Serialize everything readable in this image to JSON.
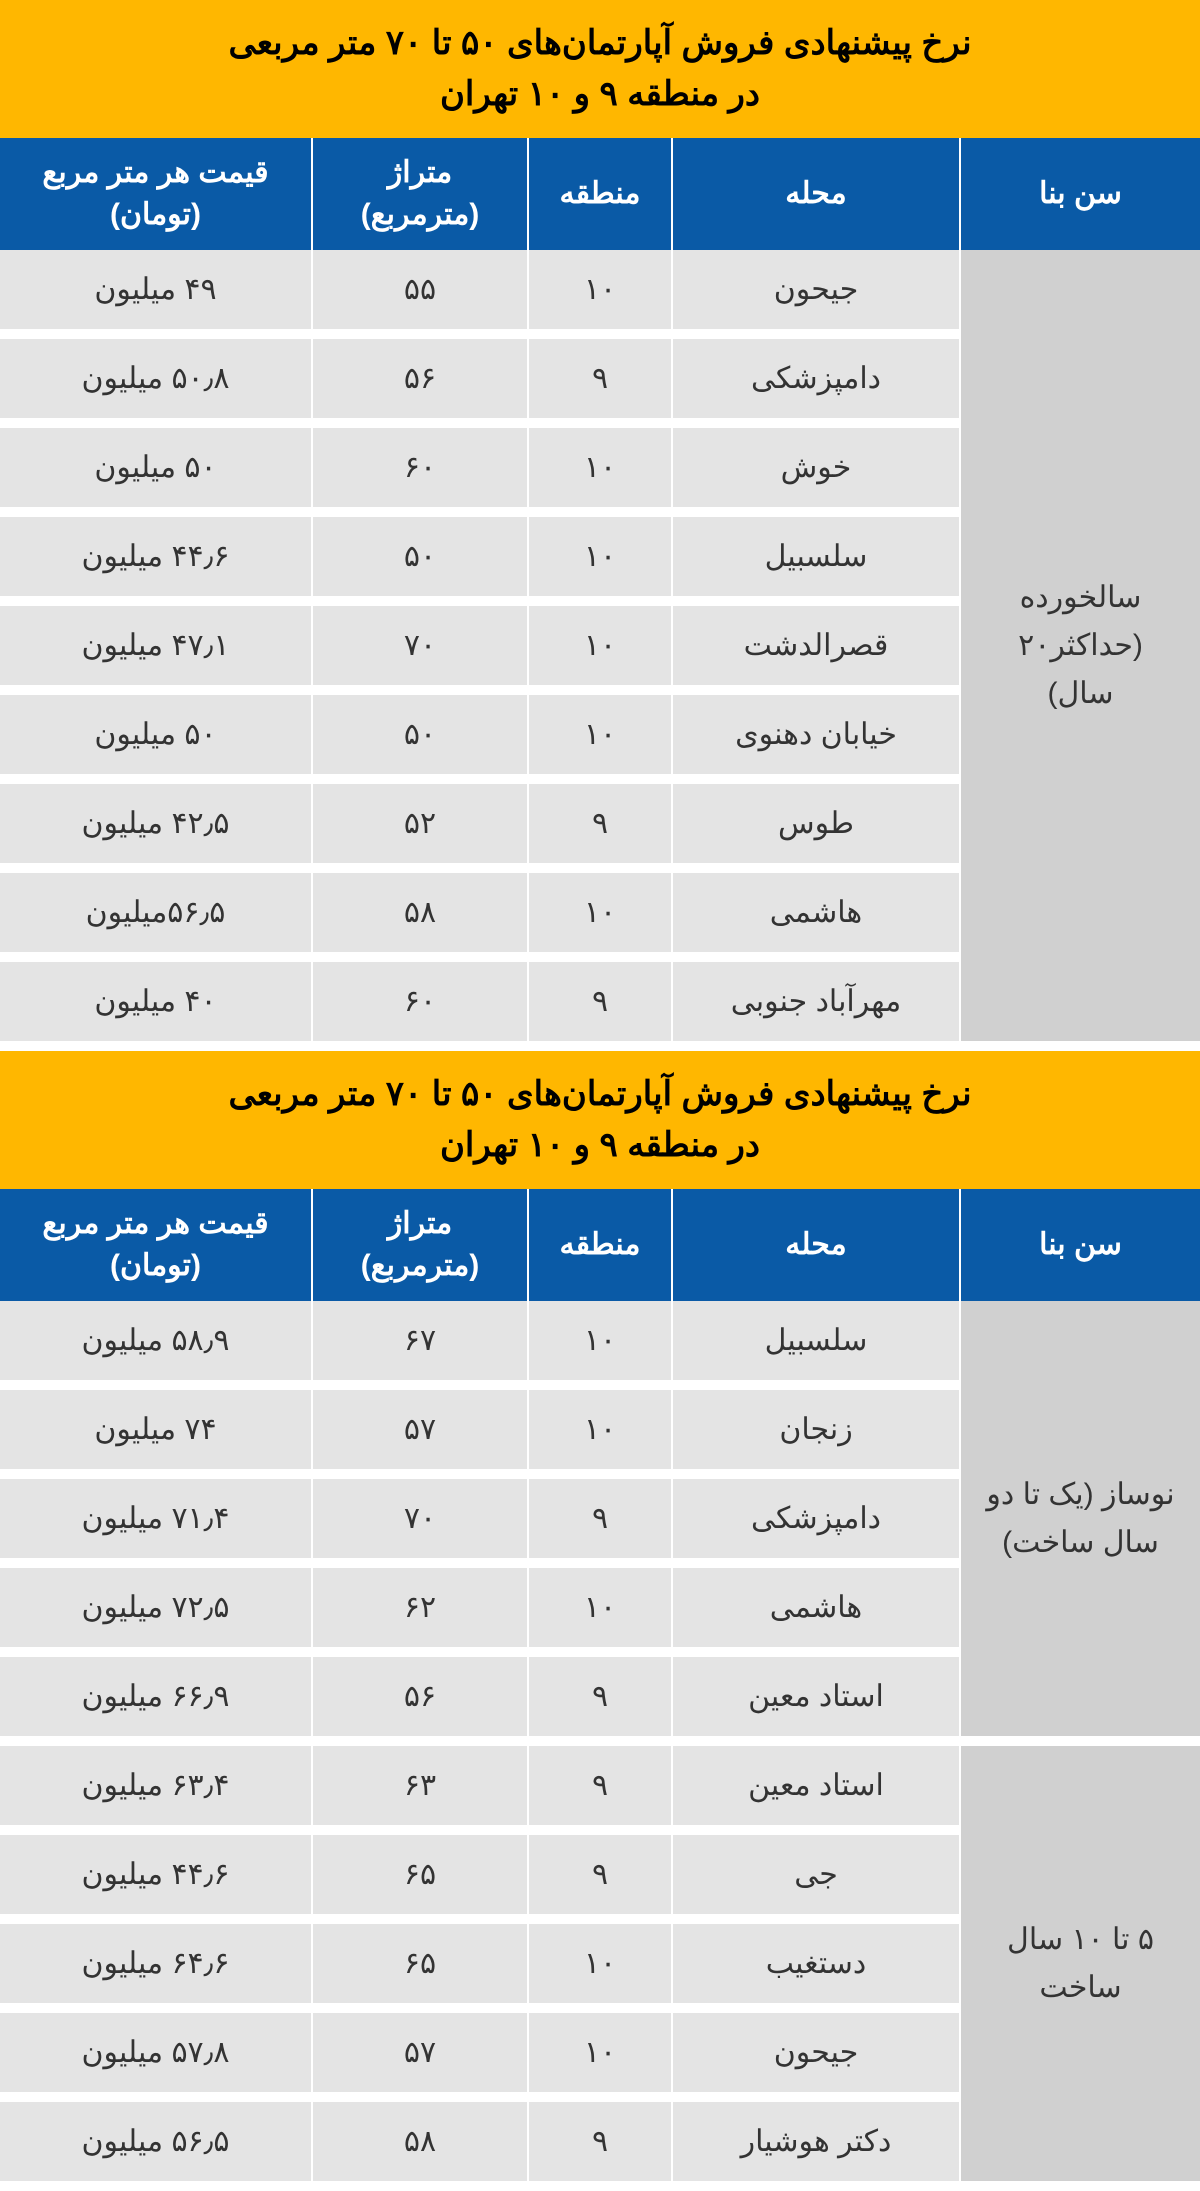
{
  "colors": {
    "title_bg": "#ffb700",
    "title_text": "#000000",
    "header_bg": "#0a5aa6",
    "header_text": "#ffffff",
    "cell_bg": "#e4e4e4",
    "age_cell_bg": "#d0d0d0",
    "cell_text": "#333333",
    "gap": "#ffffff"
  },
  "typography": {
    "title_fontsize": 34,
    "header_fontsize": 30,
    "cell_fontsize": 30
  },
  "tables": [
    {
      "title": "نرخ پیشنهادی فروش آپارتمان‌های ۵۰ تا ۷۰ متر مربعی\nدر منطقه ۹ و ۱۰ تهران",
      "columns": [
        "سن بنا",
        "محله",
        "منطقه",
        "متراژ\n(مترمربع)",
        "قیمت هر متر مربع\n(تومان)"
      ],
      "groups": [
        {
          "age_label": "سالخورده\n(حداکثر۲۰\nسال)",
          "rows": [
            {
              "neighborhood": "جیحون",
              "district": "۱۰",
              "area": "۵۵",
              "price": "۴۹ میلیون"
            },
            {
              "neighborhood": "دامپزشکی",
              "district": "۹",
              "area": "۵۶",
              "price": "۵۰٫۸ میلیون"
            },
            {
              "neighborhood": "خوش",
              "district": "۱۰",
              "area": "۶۰",
              "price": "۵۰ میلیون"
            },
            {
              "neighborhood": "سلسبیل",
              "district": "۱۰",
              "area": "۵۰",
              "price": "۴۴٫۶ میلیون"
            },
            {
              "neighborhood": "قصرالدشت",
              "district": "۱۰",
              "area": "۷۰",
              "price": "۴۷٫۱ میلیون"
            },
            {
              "neighborhood": "خیابان دهنوی",
              "district": "۱۰",
              "area": "۵۰",
              "price": "۵۰ میلیون"
            },
            {
              "neighborhood": "طوس",
              "district": "۹",
              "area": "۵۲",
              "price": "۴۲٫۵ میلیون"
            },
            {
              "neighborhood": "هاشمی",
              "district": "۱۰",
              "area": "۵۸",
              "price": "۵۶٫۵میلیون"
            },
            {
              "neighborhood": "مهرآباد جنوبی",
              "district": "۹",
              "area": "۶۰",
              "price": "۴۰ میلیون"
            }
          ]
        }
      ]
    },
    {
      "title": "نرخ پیشنهادی فروش آپارتمان‌های ۵۰ تا ۷۰ متر مربعی\nدر منطقه ۹ و ۱۰ تهران",
      "columns": [
        "سن بنا",
        "محله",
        "منطقه",
        "متراژ\n(مترمربع)",
        "قیمت هر متر مربع\n(تومان)"
      ],
      "groups": [
        {
          "age_label": "نوساز (یک تا دو\nسال ساخت)",
          "rows": [
            {
              "neighborhood": "سلسبیل",
              "district": "۱۰",
              "area": "۶۷",
              "price": "۵۸٫۹ میلیون"
            },
            {
              "neighborhood": "زنجان",
              "district": "۱۰",
              "area": "۵۷",
              "price": "۷۴ میلیون"
            },
            {
              "neighborhood": "دامپزشکی",
              "district": "۹",
              "area": "۷۰",
              "price": "۷۱٫۴ میلیون"
            },
            {
              "neighborhood": "هاشمی",
              "district": "۱۰",
              "area": "۶۲",
              "price": "۷۲٫۵ میلیون"
            },
            {
              "neighborhood": "استاد معین",
              "district": "۹",
              "area": "۵۶",
              "price": "۶۶٫۹ میلیون"
            }
          ]
        },
        {
          "age_label": "۵ تا ۱۰ سال\nساخت",
          "rows": [
            {
              "neighborhood": "استاد معین",
              "district": "۹",
              "area": "۶۳",
              "price": "۶۳٫۴ میلیون"
            },
            {
              "neighborhood": "جی",
              "district": "۹",
              "area": "۶۵",
              "price": "۴۴٫۶ میلیون"
            },
            {
              "neighborhood": "دستغیب",
              "district": "۱۰",
              "area": "۶۵",
              "price": "۶۴٫۶ میلیون"
            },
            {
              "neighborhood": "جیحون",
              "district": "۱۰",
              "area": "۵۷",
              "price": "۵۷٫۸ میلیون"
            },
            {
              "neighborhood": "دکتر هوشیار",
              "district": "۹",
              "area": "۵۸",
              "price": "۵۶٫۵ میلیون"
            }
          ]
        }
      ]
    }
  ]
}
